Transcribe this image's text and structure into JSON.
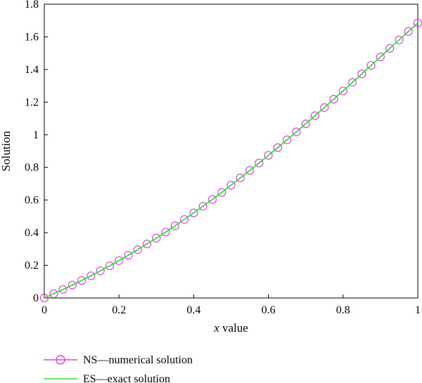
{
  "chart_data": {
    "type": "line",
    "xlabel": "value",
    "xlabel_prefix": "x",
    "ylabel": "Solution",
    "xlim": [
      0,
      1
    ],
    "ylim": [
      0,
      1.8
    ],
    "xticks": [
      0,
      0.2,
      0.4,
      0.6,
      0.8,
      1
    ],
    "xtick_labels": [
      "0",
      "0.2",
      "0.4",
      "0.6",
      "0.8",
      "1"
    ],
    "yticks": [
      0,
      0.2,
      0.4,
      0.6,
      0.8,
      1,
      1.2,
      1.4,
      1.6,
      1.8
    ],
    "ytick_labels": [
      "0",
      "0.2",
      "0.4",
      "0.6",
      "0.8",
      "1",
      "1.2",
      "1.4",
      "1.6",
      "1.8"
    ],
    "grid": false,
    "legend_position": "below",
    "series": [
      {
        "name": "NS—numerical solution",
        "color": "#e040e0",
        "marker": "circle",
        "line": true,
        "x": [
          0,
          0.025,
          0.05,
          0.075,
          0.1,
          0.125,
          0.15,
          0.175,
          0.2,
          0.225,
          0.25,
          0.275,
          0.3,
          0.325,
          0.35,
          0.375,
          0.4,
          0.425,
          0.45,
          0.475,
          0.5,
          0.525,
          0.55,
          0.575,
          0.6,
          0.625,
          0.65,
          0.675,
          0.7,
          0.725,
          0.75,
          0.775,
          0.8,
          0.825,
          0.85,
          0.875,
          0.9,
          0.925,
          0.95,
          0.975,
          1
        ],
        "y": [
          0,
          0.026,
          0.052,
          0.079,
          0.107,
          0.136,
          0.166,
          0.197,
          0.229,
          0.262,
          0.296,
          0.331,
          0.367,
          0.404,
          0.442,
          0.481,
          0.521,
          0.562,
          0.604,
          0.647,
          0.691,
          0.736,
          0.781,
          0.827,
          0.874,
          0.921,
          0.969,
          1.018,
          1.067,
          1.117,
          1.167,
          1.218,
          1.269,
          1.321,
          1.373,
          1.425,
          1.477,
          1.529,
          1.581,
          1.633,
          1.685
        ]
      },
      {
        "name": "ES—exact solution",
        "color": "#33dd33",
        "marker": "none",
        "line": true,
        "x": [
          0,
          0.025,
          0.05,
          0.075,
          0.1,
          0.125,
          0.15,
          0.175,
          0.2,
          0.225,
          0.25,
          0.275,
          0.3,
          0.325,
          0.35,
          0.375,
          0.4,
          0.425,
          0.45,
          0.475,
          0.5,
          0.525,
          0.55,
          0.575,
          0.6,
          0.625,
          0.65,
          0.675,
          0.7,
          0.725,
          0.75,
          0.775,
          0.8,
          0.825,
          0.85,
          0.875,
          0.9,
          0.925,
          0.95,
          0.975,
          1
        ],
        "y": [
          0,
          0.026,
          0.052,
          0.079,
          0.107,
          0.136,
          0.166,
          0.197,
          0.229,
          0.262,
          0.296,
          0.331,
          0.367,
          0.404,
          0.442,
          0.481,
          0.521,
          0.562,
          0.604,
          0.647,
          0.691,
          0.736,
          0.781,
          0.827,
          0.874,
          0.921,
          0.969,
          1.018,
          1.067,
          1.117,
          1.167,
          1.218,
          1.269,
          1.321,
          1.373,
          1.425,
          1.477,
          1.529,
          1.581,
          1.633,
          1.685
        ]
      }
    ]
  }
}
